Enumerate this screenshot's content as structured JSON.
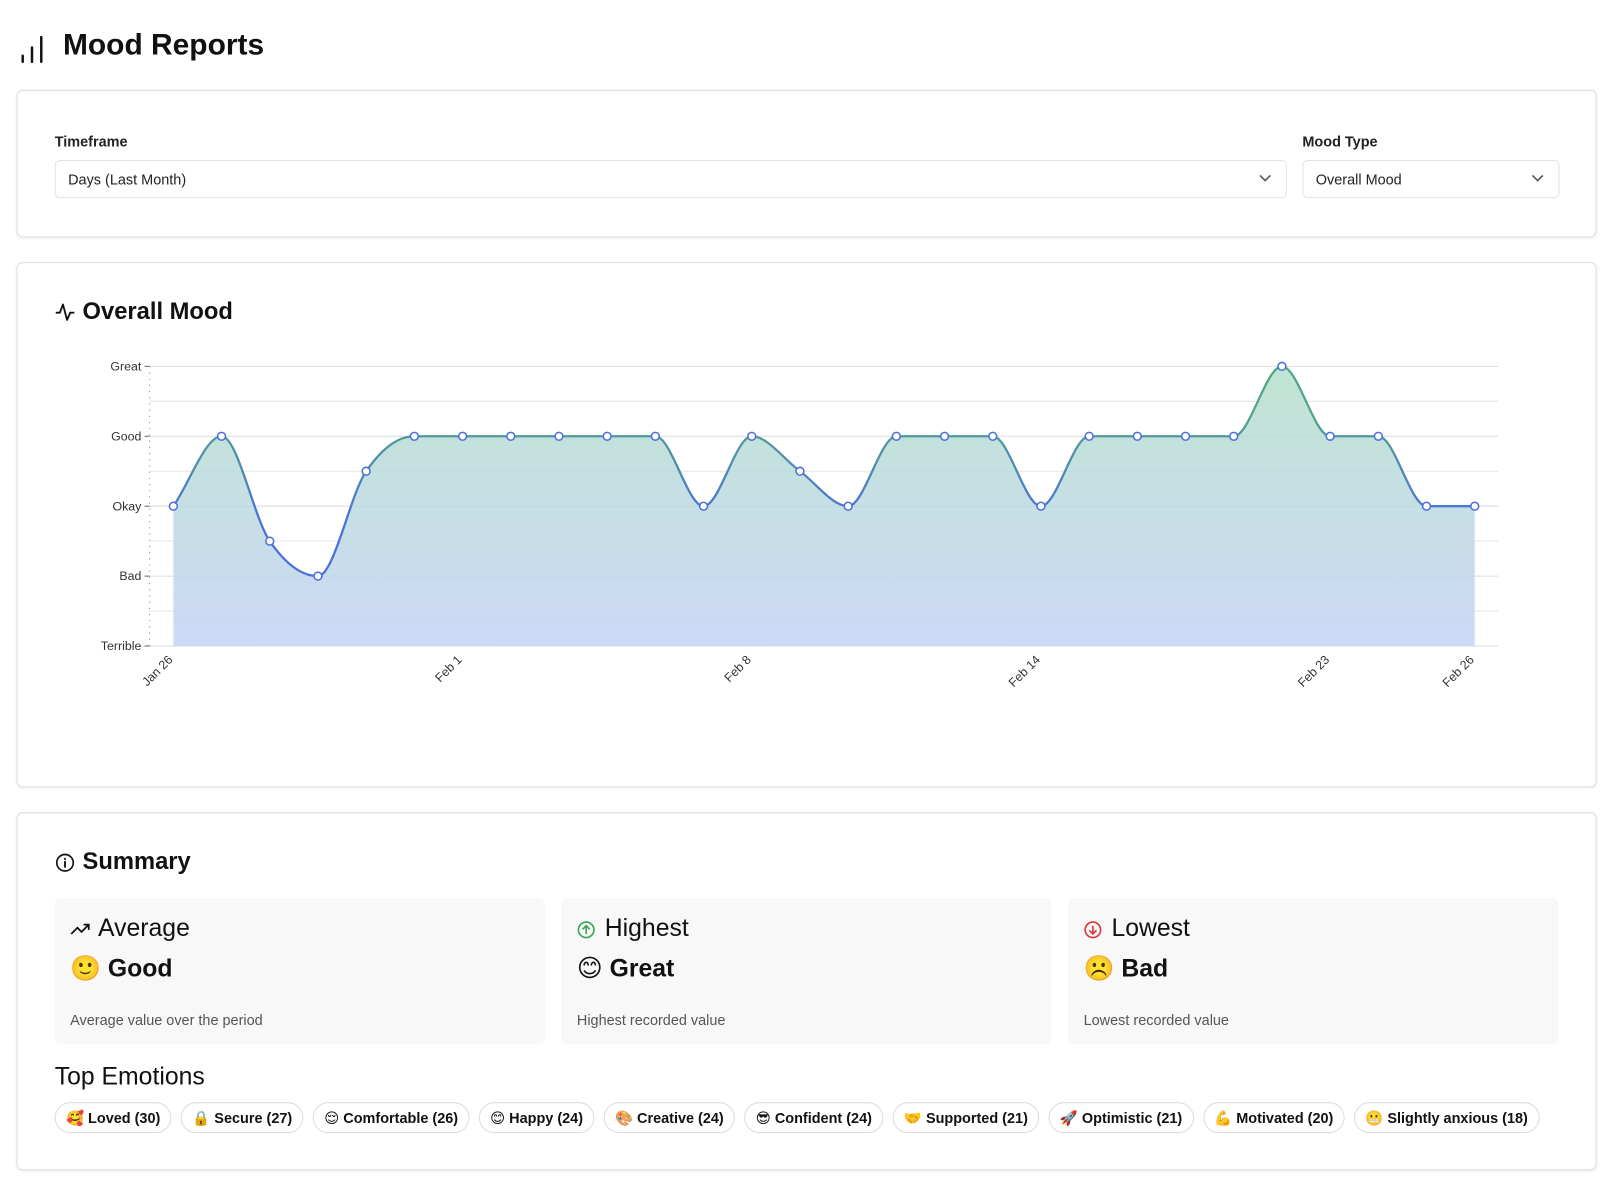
{
  "header": {
    "title": "Mood Reports"
  },
  "filters": [
    {
      "label": "Timeframe",
      "value": "Days (Last Month)"
    },
    {
      "label": "Mood Type",
      "value": "Overall Mood"
    }
  ],
  "chart_data": {
    "type": "area",
    "title": "Overall Mood",
    "categories": [
      "Jan 26",
      null,
      null,
      null,
      null,
      null,
      "Feb 1",
      null,
      null,
      null,
      null,
      null,
      "Feb 8",
      null,
      null,
      null,
      null,
      null,
      "Feb 14",
      null,
      null,
      null,
      null,
      null,
      "Feb 23",
      null,
      null,
      "Feb 26"
    ],
    "values": [
      3,
      4,
      2.5,
      2,
      3.5,
      4,
      4,
      4,
      4,
      4,
      4,
      3,
      4,
      3.5,
      3,
      4,
      4,
      4,
      3,
      4,
      4,
      4,
      4,
      5,
      4,
      4,
      3,
      3
    ],
    "ylim": [
      1,
      5
    ],
    "yticks": [
      {
        "value": 1,
        "label": "Terrible"
      },
      {
        "value": 2,
        "label": "Bad"
      },
      {
        "value": 3,
        "label": "Okay"
      },
      {
        "value": 4,
        "label": "Good"
      },
      {
        "value": 5,
        "label": "Great"
      }
    ],
    "minor_yticks": [
      1.5,
      2.5,
      3.5,
      4.5
    ],
    "grid": true,
    "line_colors": [
      "#52a684",
      "#4b70db"
    ],
    "fill_colors": [
      "#b5dfca",
      "#c3d3f6"
    ]
  },
  "summary": {
    "title": "Summary",
    "cards": [
      {
        "title": "Average",
        "emoji": "🙂",
        "value": "Good",
        "description": "Average value over the period"
      },
      {
        "title": "Highest",
        "emoji": "😊",
        "value": "Great",
        "description": "Highest recorded value"
      },
      {
        "title": "Lowest",
        "emoji": "☹️",
        "value": "Bad",
        "description": "Lowest recorded value"
      }
    ]
  },
  "top_emotions": {
    "title": "Top Emotions",
    "items": [
      "🥰 Loved (30)",
      "🔒 Secure (27)",
      "😌 Comfortable (26)",
      "😊 Happy (24)",
      "🎨 Creative (24)",
      "😎 Confident (24)",
      "🤝 Supported (21)",
      "🚀 Optimistic (21)",
      "💪 Motivated (20)",
      "😬 Slightly anxious (18)"
    ]
  }
}
